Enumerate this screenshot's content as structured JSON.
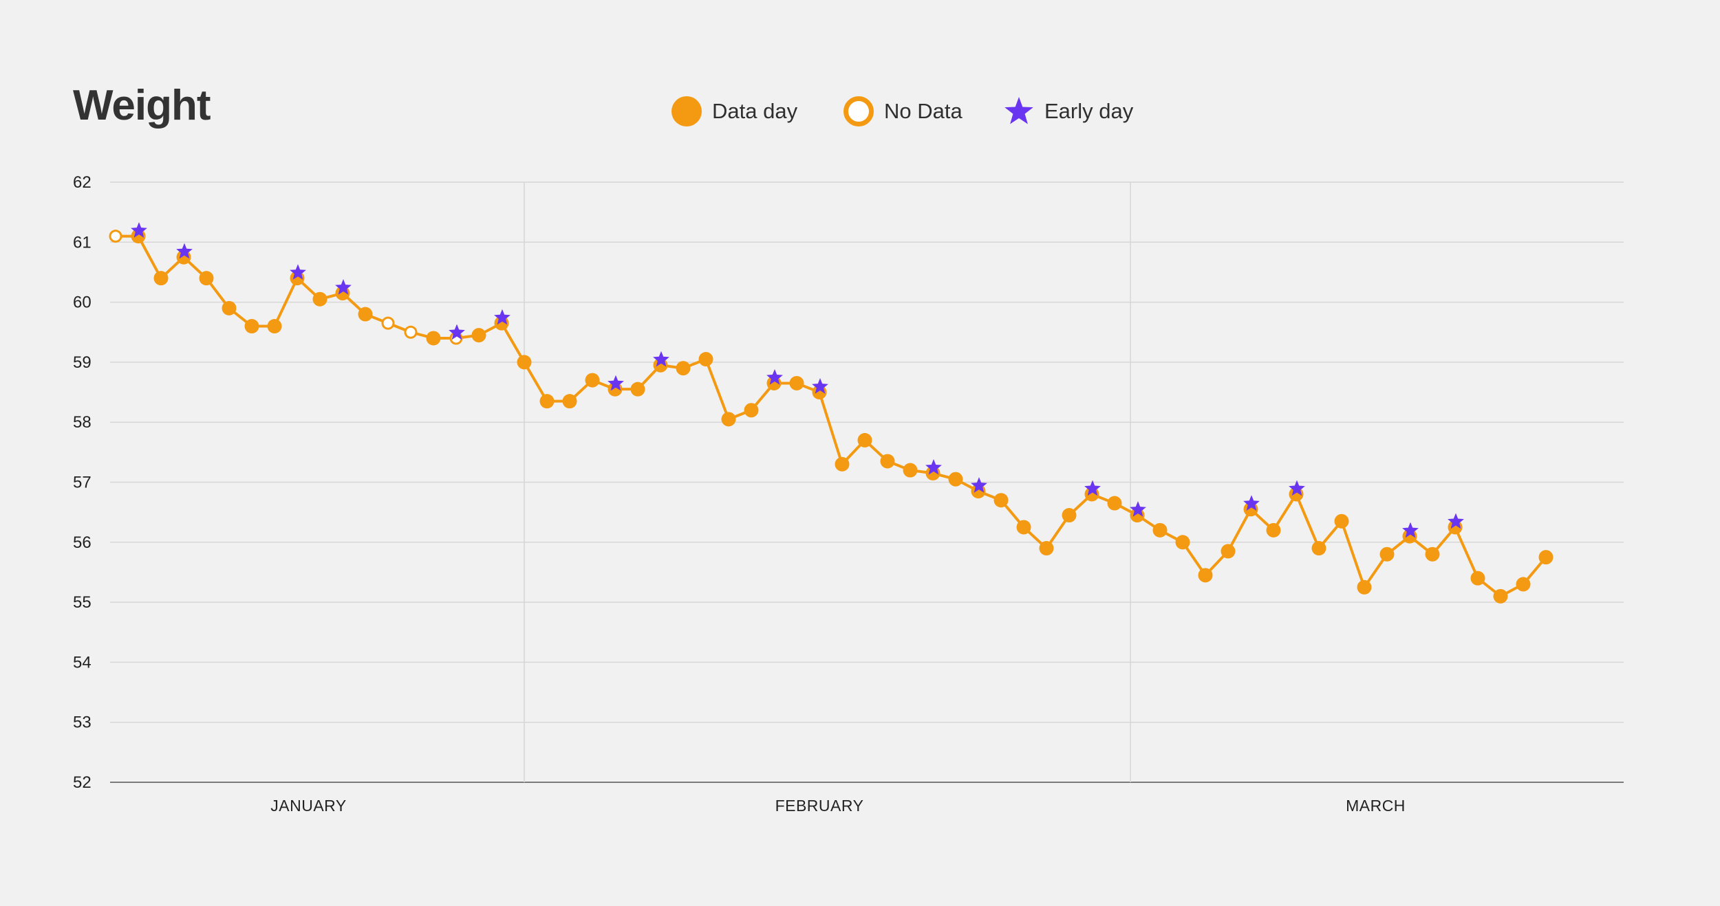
{
  "title": "Weight",
  "colors": {
    "line": "#f39a12",
    "early_star": "#6a35f0",
    "grid": "#d6d6d6",
    "axis": "#7a7a7a",
    "background": "#f1f1f1"
  },
  "legend": [
    {
      "key": "data",
      "label": "Data day",
      "icon": "filled-circle-icon"
    },
    {
      "key": "nodata",
      "label": "No Data",
      "icon": "hollow-circle-icon"
    },
    {
      "key": "early",
      "label": "Early day",
      "icon": "star-icon"
    }
  ],
  "chart_data": {
    "type": "line",
    "title": "Weight",
    "ylim": [
      52,
      62
    ],
    "yticks": [
      52,
      53,
      54,
      55,
      56,
      57,
      58,
      59,
      60,
      61,
      62
    ],
    "x_range": [
      0,
      67
    ],
    "month_labels": [
      {
        "label": "JANUARY",
        "x": 8.5
      },
      {
        "label": "FEBRUARY",
        "x": 31
      },
      {
        "label": "MARCH",
        "x": 55.5
      }
    ],
    "month_dividers": [
      18,
      44.7
    ],
    "grid": "horizontal",
    "points": [
      {
        "y": 61.1,
        "status": "nodata",
        "early": false
      },
      {
        "y": 61.1,
        "status": "data",
        "early": true
      },
      {
        "y": 60.4,
        "status": "data",
        "early": false
      },
      {
        "y": 60.75,
        "status": "data",
        "early": true
      },
      {
        "y": 60.4,
        "status": "data",
        "early": false
      },
      {
        "y": 59.9,
        "status": "data",
        "early": false
      },
      {
        "y": 59.6,
        "status": "data",
        "early": false
      },
      {
        "y": 59.6,
        "status": "data",
        "early": false
      },
      {
        "y": 60.4,
        "status": "data",
        "early": true
      },
      {
        "y": 60.05,
        "status": "data",
        "early": false
      },
      {
        "y": 60.15,
        "status": "data",
        "early": true
      },
      {
        "y": 59.8,
        "status": "data",
        "early": false
      },
      {
        "y": 59.65,
        "status": "nodata",
        "early": false
      },
      {
        "y": 59.5,
        "status": "nodata",
        "early": false
      },
      {
        "y": 59.4,
        "status": "data",
        "early": false
      },
      {
        "y": 59.4,
        "status": "nodata",
        "early": true
      },
      {
        "y": 59.45,
        "status": "data",
        "early": false
      },
      {
        "y": 59.65,
        "status": "data",
        "early": true
      },
      {
        "y": 59.0,
        "status": "data",
        "early": false
      },
      {
        "y": 58.35,
        "status": "data",
        "early": false
      },
      {
        "y": 58.35,
        "status": "data",
        "early": false
      },
      {
        "y": 58.7,
        "status": "data",
        "early": false
      },
      {
        "y": 58.55,
        "status": "data",
        "early": true
      },
      {
        "y": 58.55,
        "status": "data",
        "early": false
      },
      {
        "y": 58.95,
        "status": "data",
        "early": true
      },
      {
        "y": 58.9,
        "status": "data",
        "early": false
      },
      {
        "y": 59.05,
        "status": "data",
        "early": false
      },
      {
        "y": 58.05,
        "status": "data",
        "early": false
      },
      {
        "y": 58.2,
        "status": "data",
        "early": false
      },
      {
        "y": 58.65,
        "status": "data",
        "early": true
      },
      {
        "y": 58.65,
        "status": "data",
        "early": false
      },
      {
        "y": 58.5,
        "status": "data",
        "early": true
      },
      {
        "y": 57.3,
        "status": "data",
        "early": false
      },
      {
        "y": 57.7,
        "status": "data",
        "early": false
      },
      {
        "y": 57.35,
        "status": "data",
        "early": false
      },
      {
        "y": 57.2,
        "status": "data",
        "early": false
      },
      {
        "y": 57.15,
        "status": "data",
        "early": true
      },
      {
        "y": 57.05,
        "status": "data",
        "early": false
      },
      {
        "y": 56.85,
        "status": "data",
        "early": true
      },
      {
        "y": 56.7,
        "status": "data",
        "early": false
      },
      {
        "y": 56.25,
        "status": "data",
        "early": false
      },
      {
        "y": 55.9,
        "status": "data",
        "early": false
      },
      {
        "y": 56.45,
        "status": "data",
        "early": false
      },
      {
        "y": 56.8,
        "status": "data",
        "early": true
      },
      {
        "y": 56.65,
        "status": "data",
        "early": false
      },
      {
        "y": 56.45,
        "status": "data",
        "early": true
      },
      {
        "y": 56.2,
        "status": "data",
        "early": false
      },
      {
        "y": 56.0,
        "status": "data",
        "early": false
      },
      {
        "y": 55.45,
        "status": "data",
        "early": false
      },
      {
        "y": 55.85,
        "status": "data",
        "early": false
      },
      {
        "y": 56.55,
        "status": "data",
        "early": true
      },
      {
        "y": 56.2,
        "status": "data",
        "early": false
      },
      {
        "y": 56.8,
        "status": "data",
        "early": true
      },
      {
        "y": 55.9,
        "status": "data",
        "early": false
      },
      {
        "y": 56.35,
        "status": "data",
        "early": false
      },
      {
        "y": 55.25,
        "status": "data",
        "early": false
      },
      {
        "y": 55.8,
        "status": "data",
        "early": false
      },
      {
        "y": 56.1,
        "status": "data",
        "early": true
      },
      {
        "y": 55.8,
        "status": "data",
        "early": false
      },
      {
        "y": 56.25,
        "status": "data",
        "early": true
      },
      {
        "y": 55.4,
        "status": "data",
        "early": false
      },
      {
        "y": 55.1,
        "status": "data",
        "early": false
      },
      {
        "y": 55.3,
        "status": "data",
        "early": false
      },
      {
        "y": 55.75,
        "status": "data",
        "early": false
      }
    ]
  }
}
